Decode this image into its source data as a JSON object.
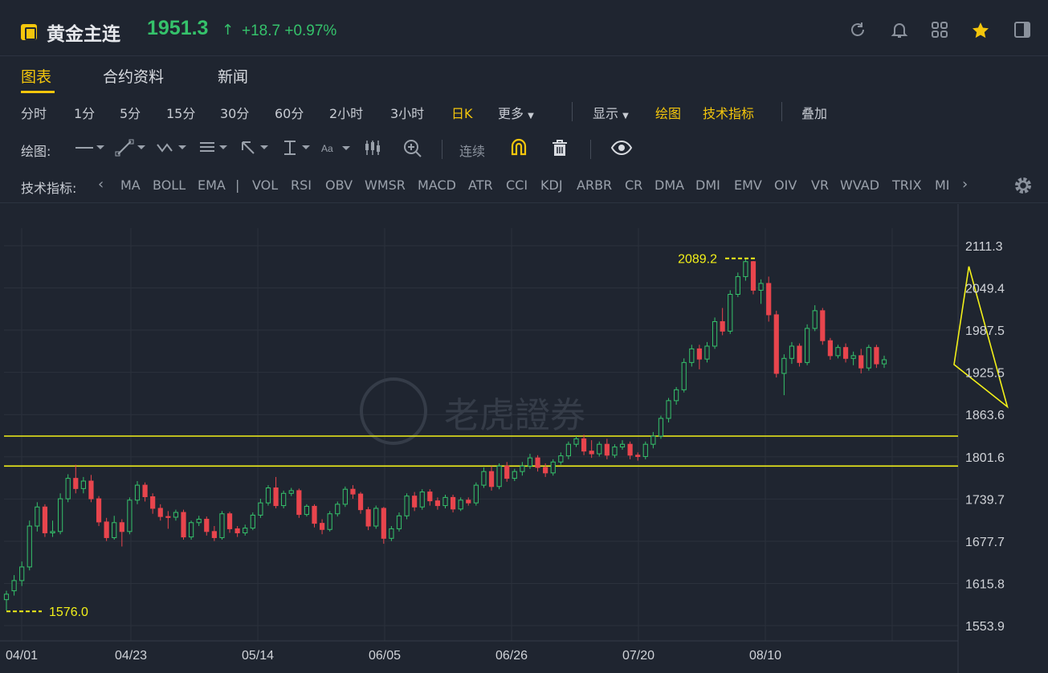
{
  "header": {
    "title": "黄金主连",
    "price": "1951.3",
    "change": "+18.7",
    "change_pct": "+0.97%",
    "up_color": "#35c26b",
    "accent": "#f4c60c"
  },
  "tabs": [
    {
      "label": "图表",
      "active": true
    },
    {
      "label": "合约资料",
      "active": false
    },
    {
      "label": "新闻",
      "active": false
    }
  ],
  "toolbar": {
    "periods": [
      "分时",
      "1分",
      "5分",
      "15分",
      "30分",
      "60分",
      "2小时",
      "3小时",
      "日K",
      "更多"
    ],
    "active_period": "日K",
    "display": "显示",
    "draw": "绘图",
    "indicators": "技术指标",
    "overlay": "叠加"
  },
  "drawbar": {
    "label": "绘图:",
    "continuous": "连续"
  },
  "indicator_bar": {
    "label": "技术指标:",
    "items": [
      "MA",
      "BOLL",
      "EMA",
      "VOL",
      "RSI",
      "OBV",
      "WMSR",
      "MACD",
      "ATR",
      "CCI",
      "KDJ",
      "ARBR",
      "CR",
      "DMA",
      "DMI",
      "EMV",
      "OIV",
      "VR",
      "WVAD",
      "TRIX",
      "MI"
    ]
  },
  "watermark": "老虎證券",
  "chart_data": {
    "type": "candlestick",
    "y_ticks": [
      "2111.3",
      "2049.4",
      "1987.5",
      "1925.5",
      "1863.6",
      "1801.6",
      "1739.7",
      "1677.7",
      "1615.8",
      "1553.9"
    ],
    "x_ticks": [
      "04/01",
      "04/23",
      "05/14",
      "06/05",
      "06/26",
      "07/20",
      "08/10"
    ],
    "ylim": [
      1553.9,
      2111.3
    ],
    "annotations": {
      "high": "2089.2",
      "low": "1576.0"
    },
    "horizontal_lines": [
      1832,
      1788
    ],
    "up_color": "#35c26b",
    "down_color": "#e8454d",
    "line_color": "#f2f019",
    "triangle": [
      [
        125,
        2081
      ],
      [
        130,
        1875
      ],
      [
        144,
        1937
      ]
    ],
    "candles": [
      [
        1592,
        1600,
        1576,
        1605
      ],
      [
        1605,
        1620,
        1598,
        1628
      ],
      [
        1620,
        1640,
        1612,
        1648
      ],
      [
        1640,
        1700,
        1635,
        1708
      ],
      [
        1700,
        1728,
        1692,
        1735
      ],
      [
        1728,
        1690,
        1684,
        1732
      ],
      [
        1690,
        1692,
        1684,
        1708
      ],
      [
        1692,
        1740,
        1688,
        1748
      ],
      [
        1740,
        1770,
        1735,
        1776
      ],
      [
        1770,
        1755,
        1748,
        1790
      ],
      [
        1755,
        1766,
        1748,
        1772
      ],
      [
        1766,
        1740,
        1735,
        1775
      ],
      [
        1740,
        1706,
        1700,
        1744
      ],
      [
        1706,
        1683,
        1678,
        1712
      ],
      [
        1683,
        1705,
        1680,
        1715
      ],
      [
        1705,
        1692,
        1670,
        1710
      ],
      [
        1692,
        1738,
        1688,
        1742
      ],
      [
        1738,
        1760,
        1732,
        1766
      ],
      [
        1760,
        1743,
        1736,
        1764
      ],
      [
        1743,
        1726,
        1718,
        1748
      ],
      [
        1726,
        1714,
        1708,
        1732
      ],
      [
        1714,
        1713,
        1696,
        1722
      ],
      [
        1713,
        1720,
        1708,
        1724
      ],
      [
        1720,
        1684,
        1680,
        1724
      ],
      [
        1684,
        1705,
        1680,
        1708
      ],
      [
        1705,
        1710,
        1700,
        1715
      ],
      [
        1710,
        1692,
        1686,
        1714
      ],
      [
        1692,
        1683,
        1678,
        1700
      ],
      [
        1683,
        1718,
        1680,
        1722
      ],
      [
        1718,
        1696,
        1690,
        1721
      ],
      [
        1696,
        1690,
        1684,
        1700
      ],
      [
        1690,
        1697,
        1686,
        1702
      ],
      [
        1697,
        1716,
        1694,
        1720
      ],
      [
        1716,
        1734,
        1712,
        1740
      ],
      [
        1734,
        1756,
        1730,
        1760
      ],
      [
        1756,
        1730,
        1726,
        1772
      ],
      [
        1730,
        1748,
        1726,
        1752
      ],
      [
        1748,
        1752,
        1744,
        1756
      ],
      [
        1752,
        1717,
        1712,
        1755
      ],
      [
        1717,
        1729,
        1714,
        1732
      ],
      [
        1729,
        1704,
        1698,
        1732
      ],
      [
        1704,
        1695,
        1688,
        1710
      ],
      [
        1695,
        1718,
        1692,
        1722
      ],
      [
        1718,
        1732,
        1714,
        1736
      ],
      [
        1732,
        1754,
        1728,
        1758
      ],
      [
        1754,
        1747,
        1740,
        1760
      ],
      [
        1747,
        1724,
        1718,
        1750
      ],
      [
        1724,
        1700,
        1694,
        1728
      ],
      [
        1700,
        1726,
        1696,
        1730
      ],
      [
        1726,
        1682,
        1674,
        1728
      ],
      [
        1682,
        1696,
        1678,
        1700
      ],
      [
        1696,
        1715,
        1692,
        1720
      ],
      [
        1715,
        1744,
        1710,
        1748
      ],
      [
        1744,
        1728,
        1722,
        1750
      ],
      [
        1728,
        1750,
        1724,
        1754
      ],
      [
        1750,
        1737,
        1730,
        1754
      ],
      [
        1737,
        1730,
        1724,
        1742
      ],
      [
        1730,
        1742,
        1726,
        1746
      ],
      [
        1742,
        1725,
        1720,
        1746
      ],
      [
        1725,
        1738,
        1722,
        1742
      ],
      [
        1738,
        1734,
        1730,
        1742
      ],
      [
        1734,
        1760,
        1730,
        1764
      ],
      [
        1760,
        1780,
        1756,
        1786
      ],
      [
        1780,
        1758,
        1752,
        1788
      ],
      [
        1758,
        1788,
        1754,
        1792
      ],
      [
        1788,
        1770,
        1765,
        1794
      ],
      [
        1770,
        1780,
        1766,
        1784
      ],
      [
        1780,
        1788,
        1774,
        1794
      ],
      [
        1788,
        1800,
        1784,
        1806
      ],
      [
        1800,
        1786,
        1780,
        1804
      ],
      [
        1786,
        1778,
        1772,
        1792
      ],
      [
        1778,
        1794,
        1774,
        1798
      ],
      [
        1794,
        1803,
        1790,
        1808
      ],
      [
        1803,
        1820,
        1798,
        1824
      ],
      [
        1820,
        1828,
        1816,
        1832
      ],
      [
        1828,
        1810,
        1804,
        1834
      ],
      [
        1810,
        1806,
        1800,
        1826
      ],
      [
        1806,
        1820,
        1802,
        1824
      ],
      [
        1820,
        1804,
        1798,
        1828
      ],
      [
        1804,
        1816,
        1800,
        1820
      ],
      [
        1816,
        1820,
        1812,
        1826
      ],
      [
        1820,
        1804,
        1798,
        1824
      ],
      [
        1804,
        1802,
        1796,
        1808
      ],
      [
        1802,
        1820,
        1798,
        1824
      ],
      [
        1820,
        1832,
        1814,
        1838
      ],
      [
        1832,
        1858,
        1828,
        1862
      ],
      [
        1858,
        1884,
        1852,
        1888
      ],
      [
        1884,
        1900,
        1878,
        1904
      ],
      [
        1900,
        1940,
        1896,
        1946
      ],
      [
        1940,
        1960,
        1934,
        1966
      ],
      [
        1960,
        1945,
        1930,
        1966
      ],
      [
        1945,
        1964,
        1940,
        1970
      ],
      [
        1964,
        2000,
        1960,
        2006
      ],
      [
        2000,
        1986,
        1980,
        2020
      ],
      [
        1986,
        2040,
        1982,
        2046
      ],
      [
        2040,
        2066,
        2036,
        2072
      ],
      [
        2066,
        2088,
        2060,
        2092
      ],
      [
        2088,
        2046,
        2040,
        2089
      ],
      [
        2046,
        2056,
        2026,
        2062
      ],
      [
        2056,
        2010,
        2000,
        2066
      ],
      [
        2010,
        1924,
        1918,
        2016
      ],
      [
        1924,
        1946,
        1892,
        1952
      ],
      [
        1946,
        1964,
        1938,
        1970
      ],
      [
        1964,
        1940,
        1934,
        1968
      ],
      [
        1940,
        1990,
        1936,
        1996
      ],
      [
        1990,
        2016,
        1986,
        2024
      ],
      [
        2016,
        1972,
        1966,
        2020
      ],
      [
        1972,
        1950,
        1944,
        1976
      ],
      [
        1950,
        1962,
        1946,
        1966
      ],
      [
        1962,
        1946,
        1940,
        1968
      ],
      [
        1946,
        1950,
        1936,
        1956
      ],
      [
        1950,
        1932,
        1924,
        1960
      ],
      [
        1932,
        1962,
        1928,
        1966
      ],
      [
        1962,
        1938,
        1932,
        1966
      ],
      [
        1938,
        1944,
        1932,
        1950
      ]
    ]
  }
}
